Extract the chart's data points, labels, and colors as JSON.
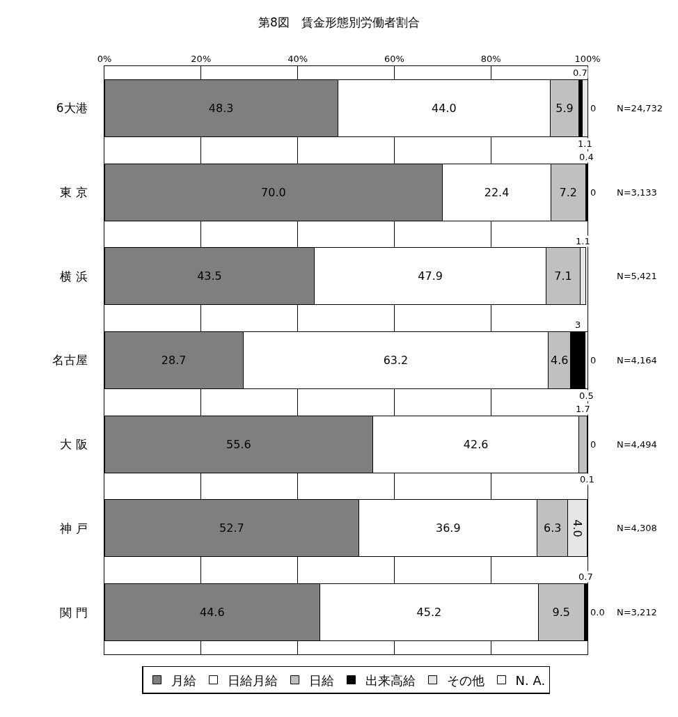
{
  "chart_data": {
    "type": "bar",
    "orientation": "horizontal",
    "stacked": true,
    "title": "第8図　賃金形態別労働者割合",
    "categories": [
      "6大港",
      "東 京",
      "横 浜",
      "名古屋",
      "大 阪",
      "神 戸",
      "関 門"
    ],
    "series": [
      {
        "name": "月給",
        "color": "#7f7f7f",
        "values": [
          48.3,
          70.0,
          43.5,
          28.7,
          55.6,
          52.7,
          44.6
        ],
        "value_labels": [
          "48.3",
          "70.0",
          "43.5",
          "28.7",
          "55.6",
          "52.7",
          "44.6"
        ]
      },
      {
        "name": "日給月給",
        "color": "#ffffff",
        "values": [
          44.0,
          22.4,
          47.9,
          63.2,
          42.6,
          36.9,
          45.2
        ],
        "value_labels": [
          "44.0",
          "22.4",
          "47.9",
          "63.2",
          "42.6",
          "36.9",
          "45.2"
        ]
      },
      {
        "name": "日給",
        "color": "#c0c0c0",
        "values": [
          5.9,
          7.2,
          7.1,
          4.6,
          1.7,
          6.3,
          9.5
        ],
        "value_labels": [
          "5.9",
          "7.2",
          "7.1",
          "4.6",
          "1.7",
          "6.3",
          "9.5"
        ]
      },
      {
        "name": "出来高給",
        "color": "#000000",
        "values": [
          0.7,
          0.4,
          null,
          3,
          0.1,
          null,
          0.7
        ],
        "value_labels": [
          "0.7",
          "0.4",
          null,
          "3",
          "0.1",
          null,
          "0.7"
        ]
      },
      {
        "name": "その他",
        "color": "#e6e6e6",
        "values": [
          1.1,
          0,
          1.1,
          0.5,
          0,
          4.0,
          0.0
        ],
        "value_labels": [
          "1.1",
          "0",
          "1.1",
          "0.5",
          "0",
          "4.0",
          "0.0"
        ]
      },
      {
        "name": "N. A.",
        "color": "#ffffff",
        "values": [
          0,
          null,
          null,
          0,
          null,
          null,
          null
        ],
        "value_labels": [
          "0",
          null,
          null,
          "0",
          null,
          null,
          null
        ]
      }
    ],
    "xlim": [
      0,
      100
    ],
    "xticks": [
      {
        "value": 0,
        "label": "0%"
      },
      {
        "value": 20,
        "label": "20%"
      },
      {
        "value": 40,
        "label": "40%"
      },
      {
        "value": 60,
        "label": "60%"
      },
      {
        "value": 80,
        "label": "80%"
      },
      {
        "value": 100,
        "label": "100%"
      }
    ],
    "grid": "x",
    "legend": "bottom",
    "annotations": [
      "N=24,732",
      "N=3,133",
      "N=5,421",
      "N=4,164",
      "N=4,494",
      "N=4,308",
      "N=3,212"
    ]
  }
}
